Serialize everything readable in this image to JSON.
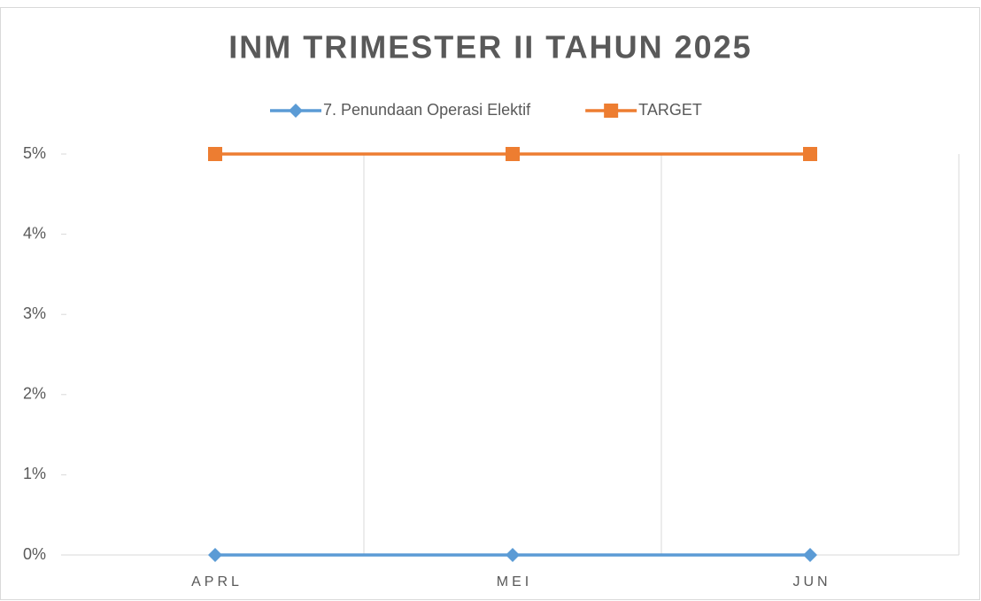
{
  "chart_data": {
    "type": "line",
    "title": "INM TRIMESTER II TAHUN 2025",
    "categories": [
      "APRL",
      "MEI",
      "JUN"
    ],
    "series": [
      {
        "name": "7. Penundaan Operasi Elektif",
        "color": "#5b9bd5",
        "marker": "diamond",
        "values": [
          0,
          0,
          0
        ]
      },
      {
        "name": "TARGET",
        "color": "#ed7d31",
        "marker": "square",
        "values": [
          5,
          5,
          5
        ]
      }
    ],
    "ylim": [
      0,
      5
    ],
    "yticks": [
      {
        "value": 0,
        "label": "0%"
      },
      {
        "value": 1,
        "label": "1%"
      },
      {
        "value": 2,
        "label": "2%"
      },
      {
        "value": 3,
        "label": "3%"
      },
      {
        "value": 4,
        "label": "4%"
      },
      {
        "value": 5,
        "label": "5%"
      }
    ],
    "legend": "top"
  }
}
